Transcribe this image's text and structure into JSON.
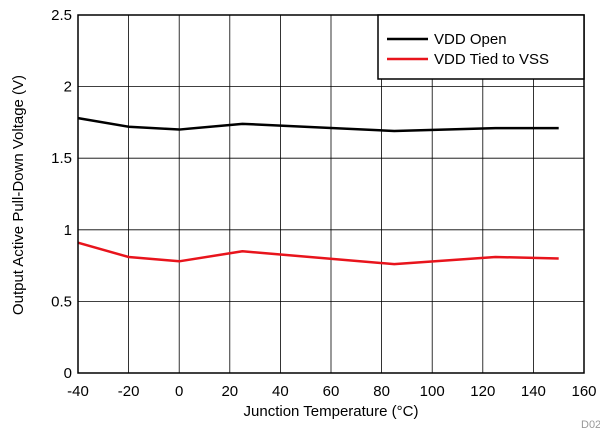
{
  "chart_data": {
    "type": "line",
    "xlabel": "Junction Temperature (°C)",
    "ylabel": "Output Active Pull-Down Voltage (V)",
    "xlim": [
      -40,
      160
    ],
    "ylim": [
      0,
      2.5
    ],
    "xticks": [
      -40,
      -20,
      0,
      20,
      40,
      60,
      80,
      100,
      120,
      140,
      160
    ],
    "yticks": [
      0,
      0.5,
      1,
      1.5,
      2,
      2.5
    ],
    "ytick_labels": [
      "0",
      "0.5",
      "1",
      "1.5",
      "2",
      "2.5"
    ],
    "grid": true,
    "legend_position": "top-right",
    "series": [
      {
        "name": "VDD Open",
        "color": "#000000",
        "x": [
          -40,
          -20,
          0,
          25,
          85,
          125,
          150
        ],
        "y": [
          1.78,
          1.72,
          1.7,
          1.74,
          1.69,
          1.71,
          1.71
        ]
      },
      {
        "name": "VDD Tied to VSS",
        "color": "#e8141c",
        "x": [
          -40,
          -20,
          0,
          25,
          85,
          125,
          150
        ],
        "y": [
          0.91,
          0.81,
          0.78,
          0.85,
          0.76,
          0.81,
          0.8
        ]
      }
    ],
    "figure_id": "D02"
  }
}
